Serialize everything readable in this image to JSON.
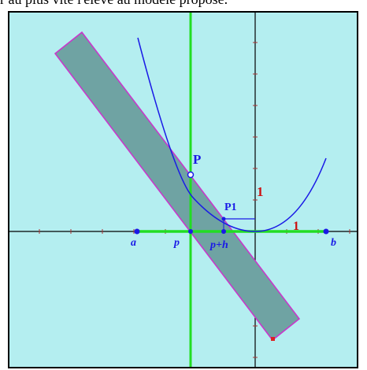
{
  "caption_text": "r au plus vite l'élève au modèle proposé.",
  "diagram": {
    "point_P_label": "P",
    "point_P1_label": "P1",
    "unit_y_label": "1",
    "unit_x_label": "1",
    "label_a": "a",
    "label_p": "p",
    "label_p_plus_h": "p+h",
    "label_b": "b"
  },
  "colors": {
    "background": "#b4eef0",
    "band_fill": "#6fa3a3",
    "band_stroke": "#cc33cc",
    "curve": "#1a1ae6",
    "vertical_line": "#22dd22",
    "segment_ab": "#22dd22",
    "labels_blue": "#1a1ae6",
    "unit_red": "#cc1111"
  }
}
